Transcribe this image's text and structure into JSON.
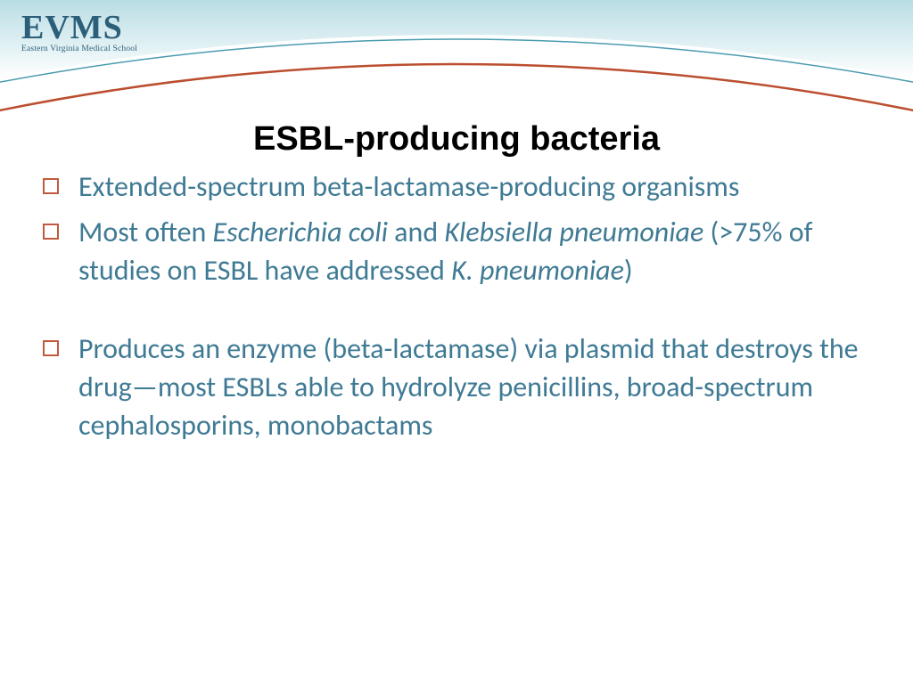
{
  "logo": {
    "main": "EVMS",
    "sub": "Eastern Virginia Medical School"
  },
  "header": {
    "gradient_top": "#b8dde4",
    "gradient_bottom": "#ffffff",
    "arc1_color": "#bb4e2f",
    "arc1_width": 2.5,
    "arc2_color": "#4a9bb0",
    "arc2_width": 1.5
  },
  "title": "ESBL-producing bacteria",
  "bullets": [
    {
      "segments": [
        {
          "text": "Extended-spectrum beta-lactamase-producing organisms",
          "italic": false
        }
      ],
      "gap": false
    },
    {
      "segments": [
        {
          "text": "Most often ",
          "italic": false
        },
        {
          "text": "Escherichia coli",
          "italic": true
        },
        {
          "text": " and ",
          "italic": false
        },
        {
          "text": "Klebsiella pneumoniae",
          "italic": true
        },
        {
          "text": " (>75% of studies on ESBL have addressed ",
          "italic": false
        },
        {
          "text": "K. pneumoniae",
          "italic": true
        },
        {
          "text": ")",
          "italic": false
        }
      ],
      "gap": false
    },
    {
      "segments": [
        {
          "text": "Produces an enzyme (beta-lactamase) via plasmid that destroys the drug—most ESBLs able to hydrolyze penicillins, broad-spectrum cephalosporins, monobactams",
          "italic": false
        }
      ],
      "gap": true
    }
  ],
  "colors": {
    "title": "#000000",
    "body_text": "#3f7a94",
    "bullet_border": "#c05a3e",
    "logo": "#2b5f7a"
  },
  "fonts": {
    "title_size": 38,
    "body_size": 32,
    "logo_main_size": 38,
    "logo_sub_size": 9.5
  }
}
